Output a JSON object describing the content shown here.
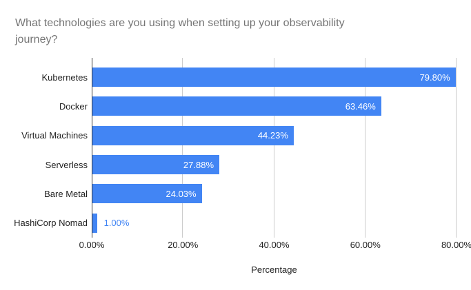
{
  "title": "What technologies are you using when setting up your observability journey?",
  "chart_data": {
    "type": "bar",
    "orientation": "horizontal",
    "title": "What technologies are you using when setting up your observability journey?",
    "categories": [
      "Kubernetes",
      "Docker",
      "Virtual Machines",
      "Serverless",
      "Bare Metal",
      "HashiCorp Nomad"
    ],
    "values": [
      79.8,
      63.46,
      44.23,
      27.88,
      24.03,
      1.0
    ],
    "value_labels": [
      "79.80%",
      "63.46%",
      "44.23%",
      "27.88%",
      "24.03%",
      "1.00%"
    ],
    "xlabel": "Percentage",
    "ylabel": "",
    "xlim": [
      0,
      80
    ],
    "x_ticks": [
      "0.00%",
      "20.00%",
      "40.00%",
      "60.00%",
      "80.00%"
    ],
    "x_tick_values": [
      0,
      20,
      40,
      60,
      80
    ],
    "grid": true,
    "legend": false,
    "inside_label_min_value": 10
  },
  "colors": {
    "bar": "#4285f4",
    "title_text": "#757575",
    "axis_text": "#222222",
    "gridline": "#cccccc",
    "axis_line": "#333333",
    "value_inside": "#ffffff",
    "value_outside": "#4285f4",
    "background": "#ffffff"
  }
}
